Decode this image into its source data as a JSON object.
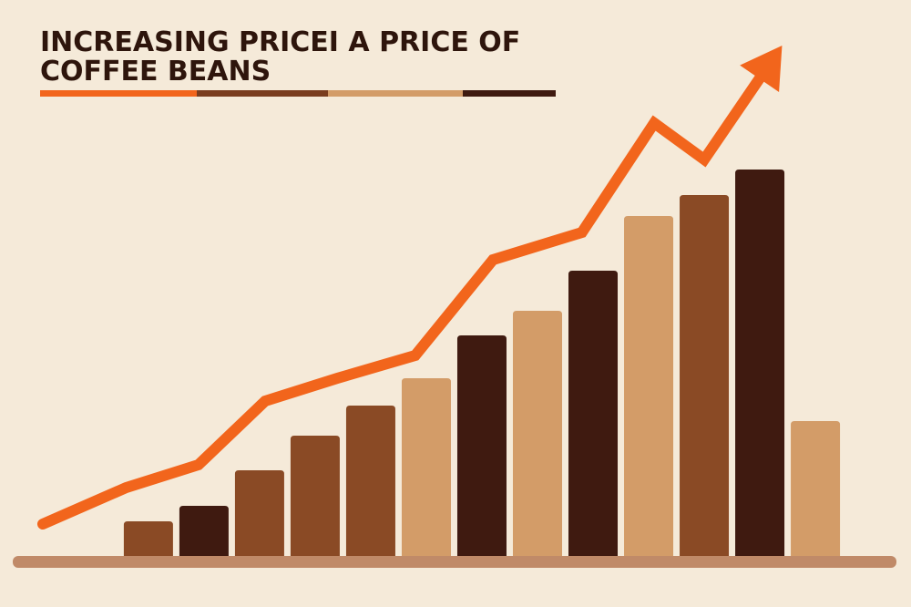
{
  "chart_data": {
    "type": "bar",
    "title": [
      "INCREASING PRICEI A PRICE OF",
      "COFFEE BEANS"
    ],
    "categories": [
      null,
      null,
      null,
      null,
      null,
      null,
      null,
      null,
      null,
      null,
      null,
      null,
      null
    ],
    "values": [
      38,
      55,
      94,
      132,
      165,
      195,
      242,
      269,
      313,
      373,
      396,
      424,
      148
    ],
    "colors": [
      "#8a4a25",
      "#3f1a10",
      "#8a4a25",
      "#8a4a25",
      "#8a4a25",
      "#d39c68",
      "#3f1a10",
      "#d39c68",
      "#3f1a10",
      "#d39c68",
      "#8a4a25",
      "#3f1a10",
      "#d39c68"
    ],
    "xlim": [
      -2.67,
      13.72
    ],
    "ylim": [
      0,
      610
    ],
    "trend": {
      "type": "line",
      "color": "#f2651c",
      "x": [
        -1.9,
        -0.4,
        0.9,
        2.1,
        3.4,
        4.8,
        6.2,
        7.8,
        9.1,
        10,
        11.4
      ],
      "values": [
        35,
        75,
        100,
        170,
        195,
        220,
        325,
        355,
        475,
        435,
        560
      ]
    }
  }
}
